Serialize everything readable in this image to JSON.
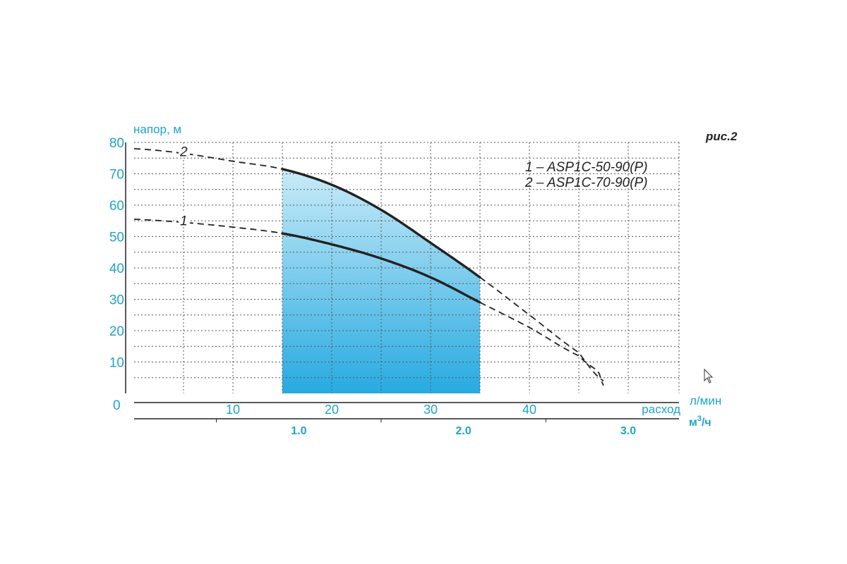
{
  "figure_label": "рис.2",
  "colors": {
    "axis_text": "#1fa3c9",
    "curve": "#222222",
    "area_top": "#c9ebf8",
    "area_bottom": "#27aae1"
  },
  "chart_data": {
    "type": "line",
    "title": "",
    "ylabel": "напор, м",
    "xlabel": "расход",
    "x_unit": "л/мин",
    "x2_unit_base": "м",
    "x2_unit_sup": "3",
    "x2_unit_tail": "/ч",
    "ylim": [
      0,
      80
    ],
    "xlim": [
      0,
      55
    ],
    "y_ticks": [
      10,
      20,
      30,
      40,
      50,
      60,
      70,
      80
    ],
    "y_zero_label": "0",
    "x_ticks": [
      10,
      20,
      30,
      40
    ],
    "x2_ticks": [
      {
        "label": "1.0",
        "x_lpm": 16.67
      },
      {
        "label": "2.0",
        "x_lpm": 33.33
      },
      {
        "label": "3.0",
        "x_lpm": 50
      }
    ],
    "grid": true,
    "working_range": [
      15,
      35
    ],
    "legend": [
      "1 – ASP1C-50-90(P)",
      "2 – ASP1C-70-90(P)"
    ],
    "legend_position": "top-right",
    "series": [
      {
        "name": "1",
        "points": [
          [
            0,
            55.5
          ],
          [
            5,
            54.5
          ],
          [
            10,
            53
          ],
          [
            15,
            51
          ],
          [
            20,
            47.5
          ],
          [
            25,
            43
          ],
          [
            30,
            37
          ],
          [
            35,
            29
          ],
          [
            40,
            21
          ],
          [
            45,
            12
          ],
          [
            47,
            7
          ],
          [
            47.5,
            2.5
          ]
        ],
        "solid_range": [
          15,
          35
        ]
      },
      {
        "name": "2",
        "points": [
          [
            0,
            78
          ],
          [
            5,
            76.5
          ],
          [
            10,
            74
          ],
          [
            15,
            71.5
          ],
          [
            20,
            66.5
          ],
          [
            25,
            58.5
          ],
          [
            30,
            48
          ],
          [
            35,
            37
          ],
          [
            40,
            25
          ],
          [
            45,
            13
          ],
          [
            47.5,
            4
          ]
        ],
        "solid_range": [
          15,
          35
        ]
      }
    ]
  }
}
